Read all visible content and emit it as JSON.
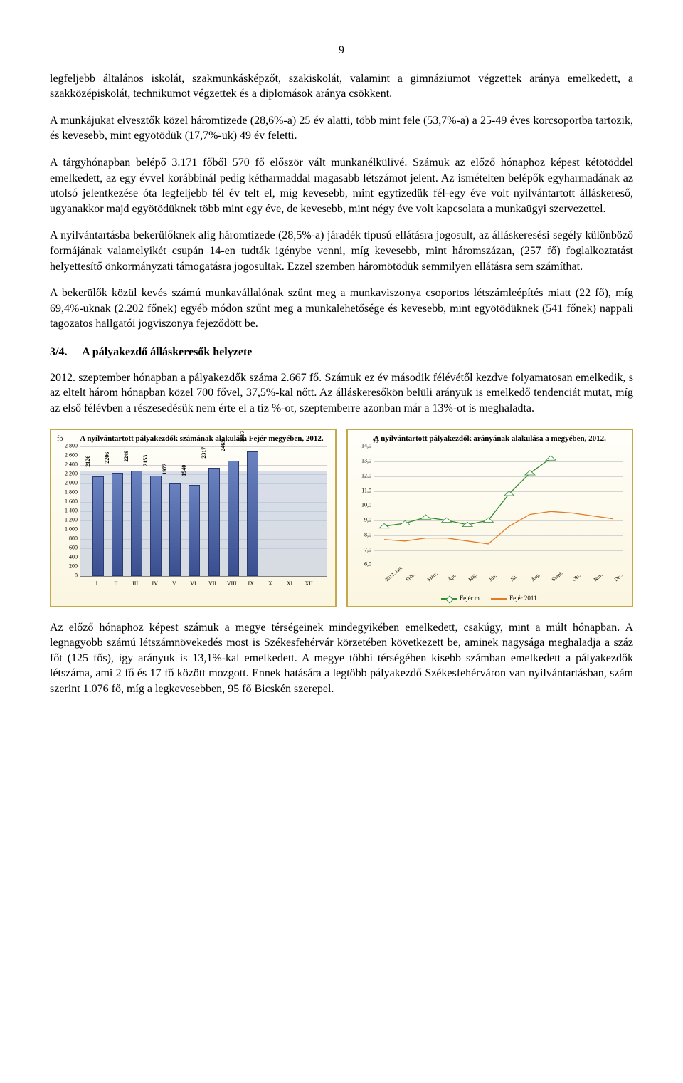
{
  "page_number": "9",
  "paragraphs": {
    "p1": "legfeljebb általános iskolát, szakmunkásképzőt, szakiskolát, valamint a gimnáziumot végzettek aránya emelkedett, a szakközépiskolát, technikumot végzettek és a diplomások aránya csökkent.",
    "p2": "A munkájukat elvesztők közel háromtizede (28,6%-a) 25 év alatti, több mint fele (53,7%-a) a 25-49 éves korcsoportba tartozik, és kevesebb, mint egyötödük (17,7%-uk) 49 év feletti.",
    "p3": "A tárgyhónapban belépő 3.171 főből 570 fő először vált munkanélkülivé. Számuk az előző hónaphoz képest kétötöddel emelkedett, az egy évvel korábbinál pedig kétharmaddal magasabb létszámot jelent. Az ismételten belépők egyharmadának az utolsó jelentkezése óta legfeljebb fél év telt el, míg kevesebb, mint egytizedük fél-egy éve volt nyilvántartott álláskereső, ugyanakkor majd egyötödüknek több mint egy éve, de kevesebb, mint négy éve volt kapcsolata a munkaügyi szervezettel.",
    "p4": "A nyilvántartásba bekerülőknek alig háromtizede (28,5%-a) járadék típusú ellátásra jogosult, az álláskeresési segély különböző formájának valamelyikét csupán 14-en tudták igénybe venni, míg kevesebb, mint háromszázan, (257 fő) foglalkoztatást helyettesítő önkormányzati támogatásra jogosultak. Ezzel szemben háromötödük semmilyen ellátásra sem számíthat.",
    "p5": "A bekerülők közül kevés számú munkavállalónak szűnt meg a munkaviszonya csoportos létszámleépítés miatt (22 fő), míg 69,4%-uknak (2.202 főnek) egyéb módon szűnt meg a munkalehetősége és kevesebb, mint egyötödüknek (541 főnek) nappali tagozatos hallgatói jogviszonya fejeződött be.",
    "p6": "2012. szeptember hónapban a pályakezdők száma 2.667 fő. Számuk ez év második félévétől kezdve folyamatosan emelkedik, s az eltelt három hónapban közel 700 fővel, 37,5%-kal nőtt. Az álláskeresőkön belüli arányuk is emelkedő tendenciát mutat, míg az első félévben a részesedésük nem érte el a tíz %-ot, szeptemberre azonban már a 13%-ot is meghaladta.",
    "p7": "Az előző hónaphoz képest számuk a megye térségeinek mindegyikében emelkedett, csakúgy, mint a múlt hónapban. A legnagyobb számú létszámnövekedés most is Székesfehérvár körzetében következett be, aminek nagysága meghaladja a száz főt (125 fős), így arányuk is 13,1%-kal emelkedett. A megye többi térségében kisebb számban emelkedett a pályakezdők létszáma, ami 2 fő és 17 fő között mozgott. Ennek hatására a legtöbb pályakezdő Székesfehérváron van nyilvántartásban, szám szerint 1.076 fő, míg a legkevesebben, 95 fő Bicskén szerepel."
  },
  "section": {
    "num": "3/4.",
    "title": "A pályakezdő álláskeresők helyzete"
  },
  "bar_chart": {
    "title": "A nyilvántartott pályakezdők számának alakulása Fejér megyében, 2012.",
    "unit": "fő",
    "ylim": [
      0,
      2800
    ],
    "ytick_step": 200,
    "bar_color_top": "#6a82c0",
    "bar_color_bottom": "#3a4f8f",
    "bar_border": "#2a3a6f",
    "area_fill": "#b8c4e0",
    "categories": [
      "I.",
      "II.",
      "III.",
      "IV.",
      "V.",
      "VI.",
      "VII.",
      "VIII.",
      "IX.",
      "X.",
      "XI.",
      "XII."
    ],
    "values": [
      2126,
      2206,
      2249,
      2153,
      1972,
      1940,
      2317,
      2465,
      2667,
      null,
      null,
      null
    ]
  },
  "line_chart": {
    "title": "A nyilvántartott pályakezdők arányának alakulása a megyében, 2012.",
    "unit": "%",
    "ylim": [
      6.0,
      14.0
    ],
    "ytick_step": 1.0,
    "categories": [
      "2012. Jan.",
      "Febr.",
      "Márc.",
      "Ápr.",
      "Máj.",
      "Jún.",
      "Júl.",
      "Aug.",
      "Szept.",
      "Okt.",
      "Nov.",
      "Dec."
    ],
    "series": [
      {
        "name": "Fejér m.",
        "color": "#2e8b2e",
        "marker": "triangle",
        "values": [
          8.6,
          8.8,
          9.2,
          9.0,
          8.7,
          9.0,
          10.8,
          12.2,
          13.2,
          null,
          null,
          null
        ]
      },
      {
        "name": "Fejér 2011.",
        "color": "#e07b2a",
        "marker": "none",
        "values": [
          7.7,
          7.6,
          7.8,
          7.8,
          7.6,
          7.4,
          8.6,
          9.4,
          9.6,
          9.5,
          9.3,
          9.1
        ]
      }
    ]
  }
}
